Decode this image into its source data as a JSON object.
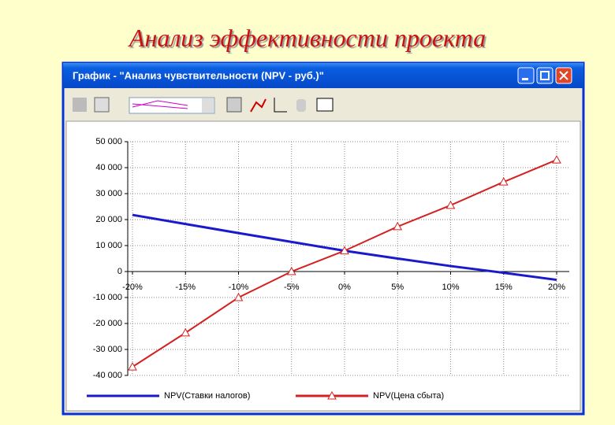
{
  "slide_title": "Анализ эффективности проекта",
  "window": {
    "title": "График - \"Анализ чувствительности (NPV - руб.)\""
  },
  "chart_data": {
    "type": "line",
    "categories": [
      "-20%",
      "-15%",
      "-10%",
      "-5%",
      "0%",
      "5%",
      "10%",
      "15%",
      "20%"
    ],
    "series": [
      {
        "name": "NPV(Ставки налогов)",
        "color": "#1a1acc",
        "marker": "none",
        "values": [
          21800,
          18300,
          14800,
          11400,
          8000,
          5000,
          2100,
          -500,
          -3200
        ]
      },
      {
        "name": "NPV(Цена сбыта)",
        "color": "#d42020",
        "marker": "triangle",
        "values": [
          -36700,
          -23600,
          -10000,
          0,
          8000,
          17300,
          25500,
          34500,
          43000
        ]
      }
    ],
    "ylim": [
      -40000,
      50000
    ],
    "yticks": [
      {
        "value": -40000,
        "label": "-40 000"
      },
      {
        "value": -30000,
        "label": "-30 000"
      },
      {
        "value": -20000,
        "label": "-20 000"
      },
      {
        "value": -10000,
        "label": "-10 000"
      },
      0,
      {
        "value": 10000,
        "label": "10 000"
      },
      {
        "value": 20000,
        "label": "20 000"
      },
      {
        "value": 30000,
        "label": "30 000"
      },
      {
        "value": 40000,
        "label": "40 000"
      },
      {
        "value": 50000,
        "label": "50 000"
      }
    ],
    "grid": true,
    "legend": "bottom"
  }
}
